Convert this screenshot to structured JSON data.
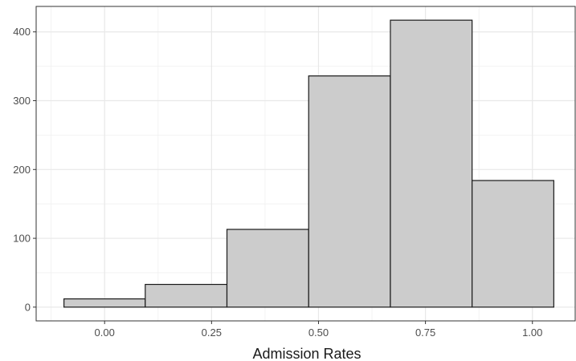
{
  "chart_data": {
    "type": "histogram",
    "title": "",
    "xlabel": "Admission Rates",
    "ylabel": "",
    "bins": [
      {
        "x0": -0.095,
        "x1": 0.095,
        "count": 12
      },
      {
        "x0": 0.095,
        "x1": 0.286,
        "count": 33
      },
      {
        "x0": 0.286,
        "x1": 0.477,
        "count": 113
      },
      {
        "x0": 0.477,
        "x1": 0.668,
        "count": 336
      },
      {
        "x0": 0.668,
        "x1": 0.859,
        "count": 417
      },
      {
        "x0": 0.859,
        "x1": 1.05,
        "count": 184
      }
    ],
    "xlim": [
      -0.16,
      1.1
    ],
    "ylim": [
      -20,
      437
    ],
    "x_ticks": [
      {
        "value": 0.0,
        "label": "0.00"
      },
      {
        "value": 0.25,
        "label": "0.25"
      },
      {
        "value": 0.5,
        "label": "0.50"
      },
      {
        "value": 0.75,
        "label": "0.75"
      },
      {
        "value": 1.0,
        "label": "1.00"
      }
    ],
    "y_ticks": [
      {
        "value": 0,
        "label": "0"
      },
      {
        "value": 100,
        "label": "100"
      },
      {
        "value": 200,
        "label": "200"
      },
      {
        "value": 300,
        "label": "300"
      },
      {
        "value": 400,
        "label": "400"
      }
    ],
    "grid": true,
    "bar_fill": "#cccccc",
    "bar_stroke": "#1a1a1a"
  }
}
